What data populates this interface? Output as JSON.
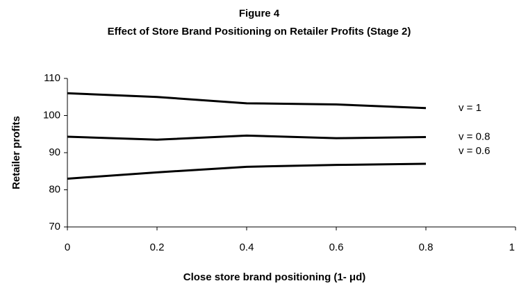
{
  "chart_data": {
    "type": "line",
    "title": "Figure 4",
    "subtitle": "Effect of Store Brand Positioning on Retailer Profits (Stage 2)",
    "x_label": "Close store brand positioning (1- μd)",
    "y_label": "Retailer profits",
    "x": [
      0,
      0.2,
      0.4,
      0.6,
      0.8
    ],
    "series": [
      {
        "name": "v = 1",
        "color": "#000000",
        "values": [
          106,
          105,
          103.3,
          103,
          102
        ]
      },
      {
        "name": "v = 0.8",
        "color": "#000000",
        "values": [
          94.3,
          93.5,
          94.6,
          93.9,
          94.2
        ]
      },
      {
        "name": "v = 0.6",
        "color": "#000000",
        "values": [
          83,
          84.7,
          86.2,
          86.7,
          87
        ]
      }
    ],
    "xlim": [
      0,
      1
    ],
    "xticks": [
      0,
      0.2,
      0.4,
      0.6,
      0.8,
      1
    ],
    "ylim": [
      70,
      110
    ],
    "yticks": [
      70,
      80,
      90,
      100,
      110
    ],
    "grid": false
  }
}
